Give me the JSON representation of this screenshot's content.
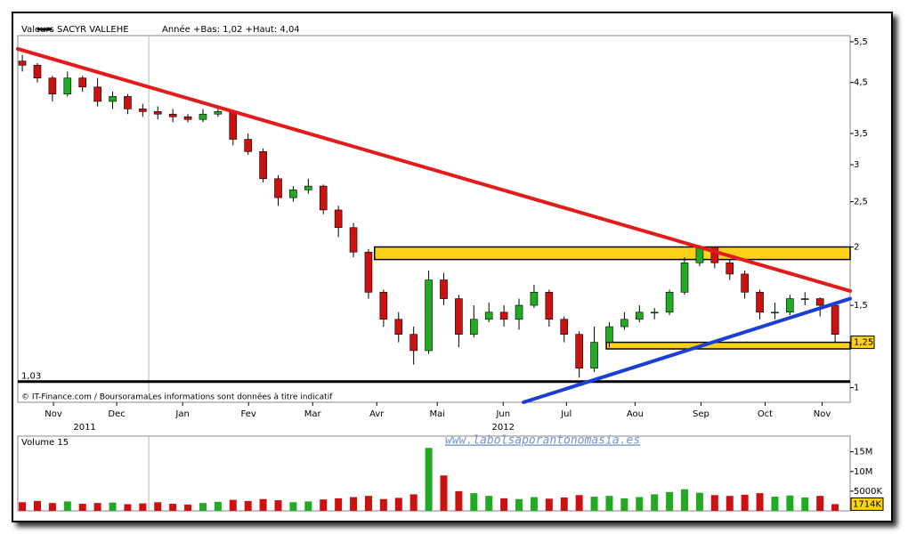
{
  "chart_data": {
    "type": "candlestick",
    "header": "Valeurs",
    "legend": "SACYR VALLEHE",
    "subtitle": "Année +Bas: 1,02 +Haut: 4,04",
    "footer": "© IT-Finance.com / BoursoramaLes informations sont données à titre indicatif",
    "watermark": "www.labolsaporantonomasia.es",
    "log_scale": true,
    "up_color": "#22aa22",
    "down_color": "#cc1111",
    "open": [
      5.0,
      4.9,
      4.6,
      4.25,
      4.6,
      4.4,
      4.1,
      4.2,
      3.95,
      3.9,
      3.85,
      3.8,
      3.75,
      3.85,
      3.9,
      3.4,
      3.2,
      2.8,
      2.55,
      2.65,
      2.7,
      2.4,
      2.2,
      1.95,
      1.6,
      1.4,
      1.3,
      1.2,
      1.7,
      1.55,
      1.3,
      1.4,
      1.45,
      1.4,
      1.5,
      1.6,
      1.4,
      1.3,
      1.1,
      1.25,
      1.35,
      1.4,
      1.45,
      1.45,
      1.6,
      1.85,
      2.0,
      1.85,
      1.75,
      1.6,
      1.45,
      1.45,
      1.55,
      1.55,
      1.5
    ],
    "high": [
      5.15,
      4.95,
      4.65,
      4.75,
      4.65,
      4.6,
      4.3,
      4.25,
      4.05,
      4.0,
      3.95,
      3.85,
      3.95,
      3.98,
      3.92,
      3.5,
      3.25,
      2.85,
      2.7,
      2.8,
      2.72,
      2.45,
      2.25,
      1.98,
      1.62,
      1.45,
      1.35,
      1.78,
      1.76,
      1.58,
      1.5,
      1.52,
      1.5,
      1.55,
      1.66,
      1.62,
      1.42,
      1.32,
      1.35,
      1.38,
      1.45,
      1.5,
      1.48,
      1.62,
      1.9,
      2.02,
      2.0,
      1.88,
      1.78,
      1.62,
      1.52,
      1.58,
      1.6,
      1.56,
      1.52
    ],
    "low": [
      4.75,
      4.5,
      4.1,
      4.2,
      4.3,
      4.0,
      3.95,
      3.85,
      3.8,
      3.75,
      3.7,
      3.7,
      3.7,
      3.8,
      3.3,
      3.15,
      2.75,
      2.45,
      2.5,
      2.6,
      2.35,
      2.1,
      1.9,
      1.55,
      1.35,
      1.25,
      1.12,
      1.18,
      1.5,
      1.22,
      1.28,
      1.38,
      1.35,
      1.33,
      1.48,
      1.35,
      1.25,
      1.05,
      1.08,
      1.22,
      1.33,
      1.38,
      1.4,
      1.43,
      1.58,
      1.82,
      1.8,
      1.7,
      1.55,
      1.4,
      1.4,
      1.43,
      1.5,
      1.42,
      1.25
    ],
    "close": [
      4.9,
      4.6,
      4.25,
      4.6,
      4.4,
      4.1,
      4.2,
      3.95,
      3.9,
      3.85,
      3.8,
      3.75,
      3.85,
      3.9,
      3.4,
      3.2,
      2.8,
      2.55,
      2.65,
      2.7,
      2.4,
      2.2,
      1.95,
      1.6,
      1.4,
      1.3,
      1.2,
      1.7,
      1.55,
      1.3,
      1.4,
      1.45,
      1.4,
      1.5,
      1.6,
      1.4,
      1.3,
      1.1,
      1.25,
      1.35,
      1.4,
      1.45,
      1.45,
      1.6,
      1.85,
      2.0,
      1.85,
      1.75,
      1.6,
      1.45,
      1.45,
      1.55,
      1.55,
      1.5,
      1.3
    ],
    "xlim": [
      -0.3,
      55
    ],
    "xticks": [
      {
        "value": 2.07,
        "label": "Nov"
      },
      {
        "value": 6.27,
        "label": "Dec"
      },
      {
        "value": 10.65,
        "label": "Jan"
      },
      {
        "value": 15.03,
        "label": "Fev"
      },
      {
        "value": 19.29,
        "label": "Mar"
      },
      {
        "value": 23.55,
        "label": "Avr"
      },
      {
        "value": 27.57,
        "label": "Mai"
      },
      {
        "value": 31.95,
        "label": "Jun"
      },
      {
        "value": 36.15,
        "label": "Jul"
      },
      {
        "value": 40.71,
        "label": "Aou"
      },
      {
        "value": 45.09,
        "label": "Sep"
      },
      {
        "value": 49.35,
        "label": "Oct"
      },
      {
        "value": 53.14,
        "label": "Nov"
      }
    ],
    "years": [
      {
        "value": 4.14,
        "label": "2011"
      },
      {
        "value": 31.95,
        "label": "2012"
      }
    ],
    "year_boundary": 8.4,
    "ylim": [
      0.93,
      5.67
    ],
    "yticks": [
      {
        "value": 5.5,
        "label": "5,5"
      },
      {
        "value": 4.5,
        "label": "4,5"
      },
      {
        "value": 3.5,
        "label": "3,5"
      },
      3,
      {
        "value": 2.5,
        "label": "2,5"
      },
      2,
      {
        "value": 1.5,
        "label": "1,5"
      },
      {
        "value": 1.25,
        "label": "1,25"
      },
      1
    ],
    "trendlines": [
      {
        "color": "#e41b1b",
        "x": [
          -0.3,
          55
        ],
        "y": [
          5.31,
          1.61
        ]
      },
      {
        "color": "#1a3fd6",
        "x": [
          33.3,
          55
        ],
        "y": [
          0.93,
          1.55
        ]
      }
    ],
    "zones": [
      {
        "x": [
          23.4,
          55
        ],
        "y": [
          1.88,
          2.0
        ]
      },
      {
        "x": [
          38.8,
          55
        ],
        "y": [
          1.21,
          1.25
        ]
      }
    ],
    "zone_color": "#ffd21a",
    "level": {
      "value": 1.03,
      "label": "1,03"
    },
    "volume_title": "Volume 15",
    "volume": [
      2.2,
      2.5,
      2.0,
      2.4,
      1.8,
      2.0,
      2.1,
      1.7,
      1.9,
      2.2,
      1.8,
      1.6,
      2.0,
      2.3,
      2.8,
      2.5,
      3.0,
      2.7,
      2.2,
      2.4,
      2.9,
      3.2,
      3.5,
      3.8,
      3.0,
      3.3,
      4.2,
      16,
      9,
      5,
      4.5,
      3.8,
      3.2,
      3.0,
      3.5,
      3.1,
      3.4,
      4.0,
      3.6,
      3.8,
      3.2,
      3.5,
      4.2,
      4.8,
      5.5,
      4.6,
      4.0,
      3.8,
      4.1,
      4.5,
      3.6,
      3.9,
      3.4,
      3.8,
      1.714
    ],
    "volume_last_label": "1714K",
    "volume_ylim": [
      0,
      19
    ],
    "volume_yticks": [
      {
        "value": 15,
        "label": "15M"
      },
      {
        "value": 10,
        "label": "10M"
      },
      {
        "value": 5,
        "label": "5000K"
      }
    ]
  }
}
